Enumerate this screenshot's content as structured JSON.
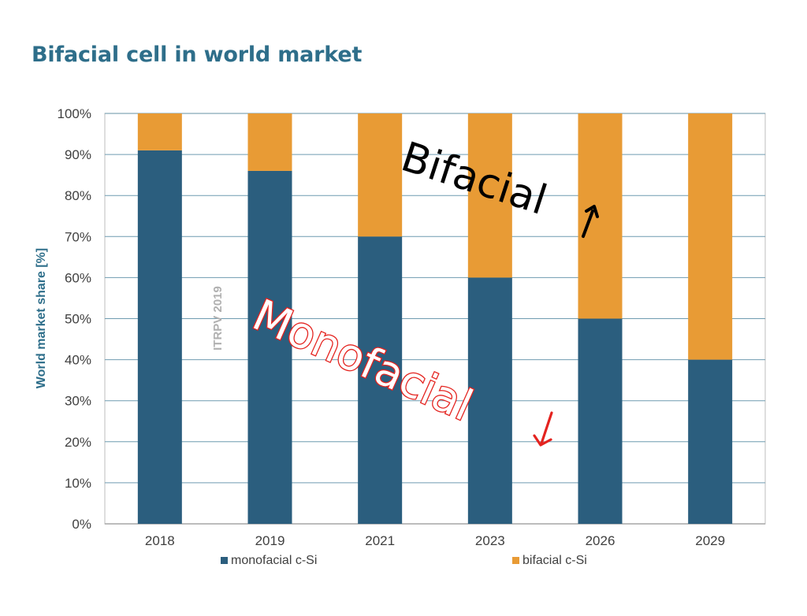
{
  "slide": {
    "title": "Bifacial cell in world market"
  },
  "chart_data": {
    "type": "bar",
    "stacked": true,
    "categories": [
      "2018",
      "2019",
      "2021",
      "2023",
      "2026",
      "2029"
    ],
    "series": [
      {
        "name": "monofacial c-Si",
        "color": "#2b5e7e",
        "values": [
          91,
          86,
          70,
          60,
          50,
          40
        ]
      },
      {
        "name": "bifacial c-Si",
        "color": "#e89b35",
        "values": [
          9,
          14,
          30,
          40,
          50,
          60
        ]
      }
    ],
    "ylabel": "World market share [%]",
    "ylim": [
      0,
      100
    ],
    "yticks": [
      "0%",
      "10%",
      "20%",
      "30%",
      "40%",
      "50%",
      "60%",
      "70%",
      "80%",
      "90%",
      "100%"
    ],
    "grid": true,
    "legend": "bottom",
    "watermark": "ITRPV 2019",
    "annotations": [
      {
        "text": "Bifacial",
        "arrow": "up",
        "color": "#000000"
      },
      {
        "text": "Monofacial",
        "arrow": "down",
        "color": "#e4231f"
      }
    ]
  }
}
